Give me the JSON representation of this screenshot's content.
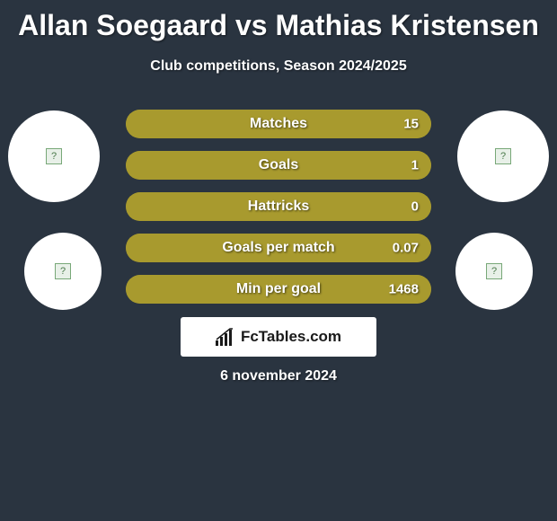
{
  "header": {
    "title": "Allan Soegaard vs Mathias Kristensen",
    "subtitle": "Club competitions, Season 2024/2025"
  },
  "colors": {
    "background": "#2a3440",
    "bar_track": "#a89a2e",
    "bar_fill": "#a89a2e",
    "text": "#ffffff",
    "avatar_bg": "#ffffff"
  },
  "stats": [
    {
      "label": "Matches",
      "value": "15",
      "fill_pct": 100
    },
    {
      "label": "Goals",
      "value": "1",
      "fill_pct": 100
    },
    {
      "label": "Hattricks",
      "value": "0",
      "fill_pct": 100
    },
    {
      "label": "Goals per match",
      "value": "0.07",
      "fill_pct": 100
    },
    {
      "label": "Min per goal",
      "value": "1468",
      "fill_pct": 100
    }
  ],
  "brand": {
    "text": "FcTables.com"
  },
  "footer": {
    "date": "6 november 2024"
  }
}
